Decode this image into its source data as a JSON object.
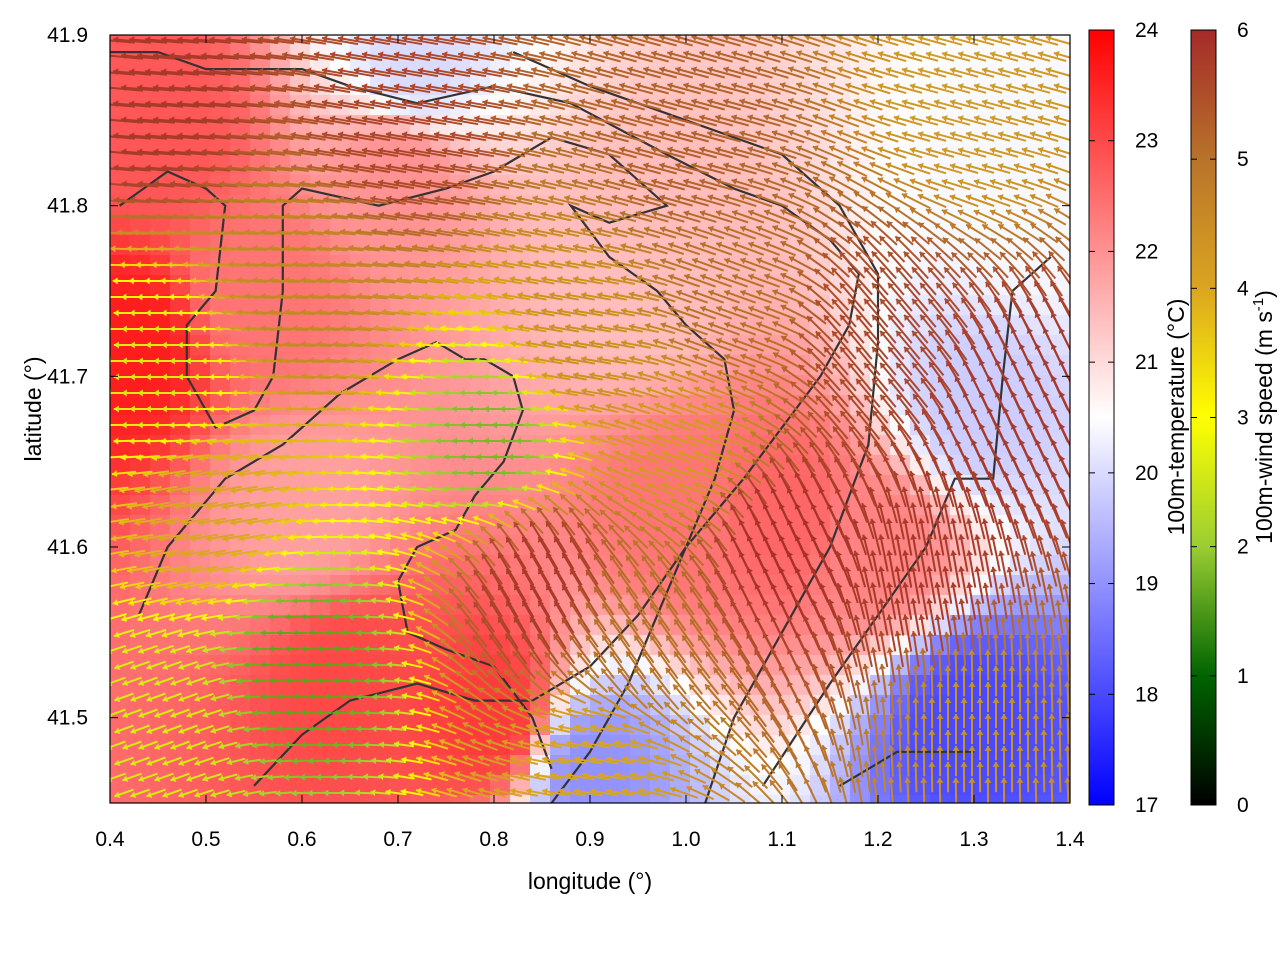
{
  "chart_data": {
    "type": "heatmap",
    "title": "",
    "xlabel": "longitude (°)",
    "ylabel": "latitude (°)",
    "xlim": [
      0.4,
      1.4
    ],
    "ylim": [
      41.45,
      41.9
    ],
    "x_ticks": [
      "0.4",
      "0.5",
      "0.6",
      "0.7",
      "0.8",
      "0.9",
      "1.0",
      "1.1",
      "1.2",
      "1.3",
      "1.4"
    ],
    "y_ticks": [
      "41.5",
      "41.6",
      "41.7",
      "41.8",
      "41.9"
    ],
    "grid": false,
    "layers": [
      "temperature field (colormap)",
      "terrain contour lines",
      "wind vectors colored by speed"
    ],
    "temperature_colorbar": {
      "label": "100m-temperature (°C)",
      "range": [
        17,
        24
      ],
      "ticks": [
        "17",
        "18",
        "19",
        "20",
        "21",
        "22",
        "23",
        "24"
      ],
      "colors": [
        "#0000ff",
        "#ffffff",
        "#ff0000"
      ]
    },
    "wind_colorbar": {
      "label_main": "100m-wind speed (m s",
      "label_sup": "-1",
      "label_end": ")",
      "range": [
        0,
        6
      ],
      "ticks": [
        "0",
        "1",
        "2",
        "3",
        "4",
        "5",
        "6"
      ],
      "colors": [
        "#000000",
        "#006400",
        "#9acd32",
        "#ffff00",
        "#daa520",
        "#b8732a",
        "#a52a2a"
      ]
    },
    "temperature_regions": [
      {
        "lon": 0.45,
        "lat": 41.84,
        "temp": 22.8
      },
      {
        "lon": 0.42,
        "lat": 41.72,
        "temp": 23.6
      },
      {
        "lon": 0.6,
        "lat": 41.62,
        "temp": 21.8
      },
      {
        "lon": 0.65,
        "lat": 41.52,
        "temp": 23.0
      },
      {
        "lon": 0.8,
        "lat": 41.5,
        "temp": 23.2
      },
      {
        "lon": 0.95,
        "lat": 41.75,
        "temp": 21.4
      },
      {
        "lon": 0.9,
        "lat": 41.47,
        "temp": 19.0
      },
      {
        "lon": 1.3,
        "lat": 41.5,
        "temp": 18.0
      },
      {
        "lon": 1.2,
        "lat": 41.6,
        "temp": 22.2
      },
      {
        "lon": 1.1,
        "lat": 41.62,
        "temp": 22.6
      },
      {
        "lon": 1.3,
        "lat": 41.68,
        "temp": 19.8
      },
      {
        "lon": 1.35,
        "lat": 41.8,
        "temp": 20.4
      },
      {
        "lon": 0.72,
        "lat": 41.88,
        "temp": 20.0
      },
      {
        "lon": 0.7,
        "lat": 41.82,
        "temp": 22.0
      },
      {
        "lon": 1.0,
        "lat": 41.62,
        "temp": 22.4
      },
      {
        "lon": 0.55,
        "lat": 41.75,
        "temp": 22.4
      }
    ],
    "wind_regions": [
      {
        "lon": 0.45,
        "lat": 41.86,
        "speed": 5.8,
        "dir_deg": 175
      },
      {
        "lon": 0.7,
        "lat": 41.85,
        "speed": 5.6,
        "dir_deg": 170
      },
      {
        "lon": 1.0,
        "lat": 41.84,
        "speed": 5.2,
        "dir_deg": 165
      },
      {
        "lon": 1.3,
        "lat": 41.86,
        "speed": 4.2,
        "dir_deg": 165
      },
      {
        "lon": 0.45,
        "lat": 41.7,
        "speed": 2.6,
        "dir_deg": 180
      },
      {
        "lon": 0.6,
        "lat": 41.75,
        "speed": 4.6,
        "dir_deg": 175
      },
      {
        "lon": 0.9,
        "lat": 41.72,
        "speed": 4.4,
        "dir_deg": 170
      },
      {
        "lon": 0.8,
        "lat": 41.66,
        "speed": 1.8,
        "dir_deg": 180
      },
      {
        "lon": 0.5,
        "lat": 41.62,
        "speed": 4.0,
        "dir_deg": 190
      },
      {
        "lon": 0.6,
        "lat": 41.53,
        "speed": 1.6,
        "dir_deg": 180
      },
      {
        "lon": 0.45,
        "lat": 41.5,
        "speed": 2.6,
        "dir_deg": 200
      },
      {
        "lon": 0.85,
        "lat": 41.58,
        "speed": 5.8,
        "dir_deg": 120
      },
      {
        "lon": 0.95,
        "lat": 41.55,
        "speed": 5.0,
        "dir_deg": 125
      },
      {
        "lon": 1.1,
        "lat": 41.6,
        "speed": 5.9,
        "dir_deg": 115
      },
      {
        "lon": 1.25,
        "lat": 41.58,
        "speed": 5.8,
        "dir_deg": 100
      },
      {
        "lon": 1.3,
        "lat": 41.5,
        "speed": 4.4,
        "dir_deg": 90
      },
      {
        "lon": 1.2,
        "lat": 41.72,
        "speed": 5.6,
        "dir_deg": 130
      },
      {
        "lon": 1.35,
        "lat": 41.68,
        "speed": 5.8,
        "dir_deg": 115
      },
      {
        "lon": 1.05,
        "lat": 41.74,
        "speed": 5.0,
        "dir_deg": 160
      },
      {
        "lon": 0.9,
        "lat": 41.47,
        "speed": 4.0,
        "dir_deg": 170
      },
      {
        "lon": 1.0,
        "lat": 41.66,
        "speed": 4.2,
        "dir_deg": 160
      }
    ],
    "contours": [
      [
        [
          0.41,
          41.8
        ],
        [
          0.46,
          41.82
        ],
        [
          0.5,
          41.81
        ],
        [
          0.52,
          41.8
        ],
        [
          0.51,
          41.75
        ],
        [
          0.48,
          41.73
        ],
        [
          0.48,
          41.7
        ],
        [
          0.5,
          41.68
        ],
        [
          0.51,
          41.67
        ],
        [
          0.55,
          41.68
        ],
        [
          0.57,
          41.7
        ],
        [
          0.58,
          41.75
        ],
        [
          0.58,
          41.8
        ],
        [
          0.6,
          41.81
        ],
        [
          0.68,
          41.8
        ],
        [
          0.75,
          41.81
        ],
        [
          0.8,
          41.82
        ],
        [
          0.86,
          41.84
        ],
        [
          0.92,
          41.83
        ],
        [
          0.98,
          41.8
        ],
        [
          0.92,
          41.79
        ],
        [
          0.88,
          41.8
        ],
        [
          0.92,
          41.77
        ],
        [
          0.97,
          41.75
        ],
        [
          1.0,
          41.73
        ],
        [
          1.04,
          41.71
        ],
        [
          1.05,
          41.68
        ],
        [
          1.03,
          41.64
        ],
        [
          1.0,
          41.6
        ],
        [
          0.97,
          41.56
        ],
        [
          0.94,
          41.52
        ],
        [
          0.9,
          41.48
        ],
        [
          0.86,
          41.45
        ]
      ],
      [
        [
          0.43,
          41.56
        ],
        [
          0.46,
          41.6
        ],
        [
          0.52,
          41.64
        ],
        [
          0.58,
          41.66
        ],
        [
          0.64,
          41.69
        ],
        [
          0.7,
          41.71
        ],
        [
          0.74,
          41.72
        ],
        [
          0.77,
          41.71
        ],
        [
          0.79,
          41.71
        ],
        [
          0.82,
          41.7
        ],
        [
          0.83,
          41.68
        ],
        [
          0.81,
          41.65
        ],
        [
          0.78,
          41.63
        ],
        [
          0.76,
          41.61
        ],
        [
          0.72,
          41.6
        ],
        [
          0.7,
          41.58
        ],
        [
          0.71,
          41.55
        ],
        [
          0.75,
          41.54
        ],
        [
          0.8,
          41.53
        ],
        [
          0.84,
          41.5
        ],
        [
          0.86,
          41.47
        ]
      ],
      [
        [
          0.55,
          41.46
        ],
        [
          0.6,
          41.49
        ],
        [
          0.65,
          41.51
        ],
        [
          0.72,
          41.52
        ],
        [
          0.78,
          41.51
        ],
        [
          0.84,
          41.51
        ],
        [
          0.9,
          41.53
        ],
        [
          0.95,
          41.56
        ],
        [
          1.0,
          41.6
        ],
        [
          1.06,
          41.64
        ],
        [
          1.1,
          41.67
        ],
        [
          1.14,
          41.7
        ],
        [
          1.17,
          41.73
        ],
        [
          1.18,
          41.76
        ],
        [
          1.15,
          41.78
        ],
        [
          1.1,
          41.8
        ],
        [
          1.05,
          41.81
        ],
        [
          0.98,
          41.83
        ],
        [
          0.88,
          41.86
        ],
        [
          0.8,
          41.87
        ],
        [
          0.72,
          41.86
        ],
        [
          0.65,
          41.87
        ],
        [
          0.6,
          41.88
        ],
        [
          0.5,
          41.88
        ],
        [
          0.45,
          41.89
        ],
        [
          0.4,
          41.89
        ]
      ],
      [
        [
          1.02,
          41.45
        ],
        [
          1.05,
          41.5
        ],
        [
          1.1,
          41.55
        ],
        [
          1.15,
          41.6
        ],
        [
          1.19,
          41.66
        ],
        [
          1.2,
          41.72
        ],
        [
          1.2,
          41.76
        ],
        [
          1.16,
          41.8
        ],
        [
          1.1,
          41.83
        ],
        [
          1.0,
          41.85
        ],
        [
          0.9,
          41.87
        ],
        [
          0.82,
          41.89
        ]
      ],
      [
        [
          1.08,
          41.46
        ],
        [
          1.15,
          41.52
        ],
        [
          1.2,
          41.56
        ],
        [
          1.25,
          41.6
        ],
        [
          1.28,
          41.64
        ],
        [
          1.32,
          41.64
        ],
        [
          1.33,
          41.7
        ],
        [
          1.34,
          41.75
        ],
        [
          1.38,
          41.77
        ]
      ],
      [
        [
          1.16,
          41.46
        ],
        [
          1.22,
          41.48
        ],
        [
          1.3,
          41.48
        ]
      ]
    ]
  }
}
